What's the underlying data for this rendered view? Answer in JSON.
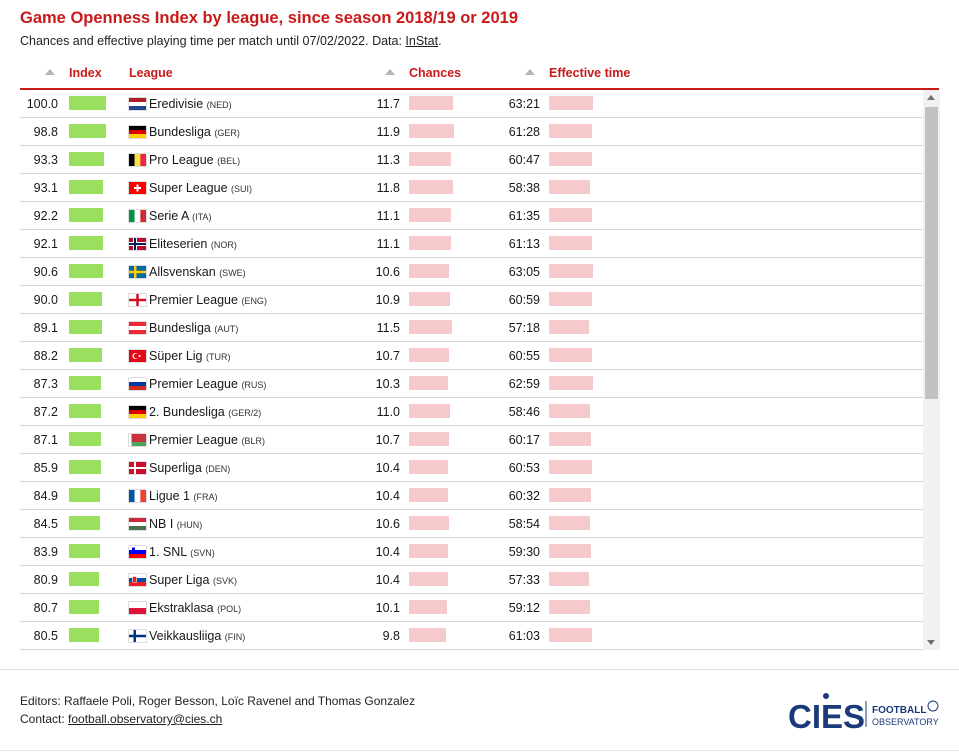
{
  "title": "Game Openness Index by league, since season 2018/19 or 2019",
  "subtitle": {
    "text": "Chances and effective playing time per match until 07/02/2022. Data: ",
    "link": "InStat",
    "end": "."
  },
  "columns": {
    "index": "Index",
    "league": "League",
    "chances": "Chances",
    "effective_time": "Effective time"
  },
  "colors": {
    "accent": "#c91a1a",
    "index_bar": "#9ae05e",
    "metric_bar": "#f6c9cc"
  },
  "chart_data": {
    "type": "table",
    "columns": [
      "Index",
      "League",
      "Chances",
      "Effective time"
    ],
    "rows": [
      {
        "index": 100.0,
        "index_label": "100.0",
        "flag": "netherlands-flag-icon",
        "league": "Eredivisie",
        "code": "(NED)",
        "chances": 11.7,
        "chances_label": "11.7",
        "time": "63:21"
      },
      {
        "index": 98.8,
        "index_label": "98.8",
        "flag": "germany-flag-icon",
        "league": "Bundesliga",
        "code": "(GER)",
        "chances": 11.9,
        "chances_label": "11.9",
        "time": "61:28"
      },
      {
        "index": 93.3,
        "index_label": "93.3",
        "flag": "belgium-flag-icon",
        "league": "Pro League",
        "code": "(BEL)",
        "chances": 11.3,
        "chances_label": "11.3",
        "time": "60:47"
      },
      {
        "index": 93.1,
        "index_label": "93.1",
        "flag": "switzerland-flag-icon",
        "league": "Super League",
        "code": "(SUI)",
        "chances": 11.8,
        "chances_label": "11.8",
        "time": "58:38"
      },
      {
        "index": 92.2,
        "index_label": "92.2",
        "flag": "italy-flag-icon",
        "league": "Serie A",
        "code": "(ITA)",
        "chances": 11.1,
        "chances_label": "11.1",
        "time": "61:35"
      },
      {
        "index": 92.1,
        "index_label": "92.1",
        "flag": "norway-flag-icon",
        "league": "Eliteserien",
        "code": "(NOR)",
        "chances": 11.1,
        "chances_label": "11.1",
        "time": "61:13"
      },
      {
        "index": 90.6,
        "index_label": "90.6",
        "flag": "sweden-flag-icon",
        "league": "Allsvenskan",
        "code": "(SWE)",
        "chances": 10.6,
        "chances_label": "10.6",
        "time": "63:05"
      },
      {
        "index": 90.0,
        "index_label": "90.0",
        "flag": "england-flag-icon",
        "league": "Premier League",
        "code": "(ENG)",
        "chances": 10.9,
        "chances_label": "10.9",
        "time": "60:59"
      },
      {
        "index": 89.1,
        "index_label": "89.1",
        "flag": "austria-flag-icon",
        "league": "Bundesliga",
        "code": "(AUT)",
        "chances": 11.5,
        "chances_label": "11.5",
        "time": "57:18"
      },
      {
        "index": 88.2,
        "index_label": "88.2",
        "flag": "turkey-flag-icon",
        "league": "Süper Lig",
        "code": "(TUR)",
        "chances": 10.7,
        "chances_label": "10.7",
        "time": "60:55"
      },
      {
        "index": 87.3,
        "index_label": "87.3",
        "flag": "russia-flag-icon",
        "league": "Premier League",
        "code": "(RUS)",
        "chances": 10.3,
        "chances_label": "10.3",
        "time": "62:59"
      },
      {
        "index": 87.2,
        "index_label": "87.2",
        "flag": "germany-flag-icon",
        "league": "2. Bundesliga",
        "code": "(GER/2)",
        "chances": 11.0,
        "chances_label": "11.0",
        "time": "58:46"
      },
      {
        "index": 87.1,
        "index_label": "87.1",
        "flag": "belarus-flag-icon",
        "league": "Premier League",
        "code": "(BLR)",
        "chances": 10.7,
        "chances_label": "10.7",
        "time": "60:17"
      },
      {
        "index": 85.9,
        "index_label": "85.9",
        "flag": "denmark-flag-icon",
        "league": "Superliga",
        "code": "(DEN)",
        "chances": 10.4,
        "chances_label": "10.4",
        "time": "60:53"
      },
      {
        "index": 84.9,
        "index_label": "84.9",
        "flag": "france-flag-icon",
        "league": "Ligue 1",
        "code": "(FRA)",
        "chances": 10.4,
        "chances_label": "10.4",
        "time": "60:32"
      },
      {
        "index": 84.5,
        "index_label": "84.5",
        "flag": "hungary-flag-icon",
        "league": "NB I",
        "code": "(HUN)",
        "chances": 10.6,
        "chances_label": "10.6",
        "time": "58:54"
      },
      {
        "index": 83.9,
        "index_label": "83.9",
        "flag": "slovenia-flag-icon",
        "league": "1. SNL",
        "code": "(SVN)",
        "chances": 10.4,
        "chances_label": "10.4",
        "time": "59:30"
      },
      {
        "index": 80.9,
        "index_label": "80.9",
        "flag": "slovakia-flag-icon",
        "league": "Super Liga",
        "code": "(SVK)",
        "chances": 10.4,
        "chances_label": "10.4",
        "time": "57:33"
      },
      {
        "index": 80.7,
        "index_label": "80.7",
        "flag": "poland-flag-icon",
        "league": "Ekstraklasa",
        "code": "(POL)",
        "chances": 10.1,
        "chances_label": "10.1",
        "time": "59:12"
      },
      {
        "index": 80.5,
        "index_label": "80.5",
        "flag": "finland-flag-icon",
        "league": "Veikkausliiga",
        "code": "(FIN)",
        "chances": 9.8,
        "chances_label": "9.8",
        "time": "61:03"
      }
    ]
  },
  "footer": {
    "editors": "Editors: Raffaele Poli, Roger Besson, Loïc Ravenel and Thomas Gonzalez",
    "contact_label": "Contact: ",
    "contact_email": "football.observatory@cies.ch"
  },
  "logo": {
    "cies": "CIES",
    "line1": "FOOTBALL",
    "line2": "OBSERVATORY"
  }
}
